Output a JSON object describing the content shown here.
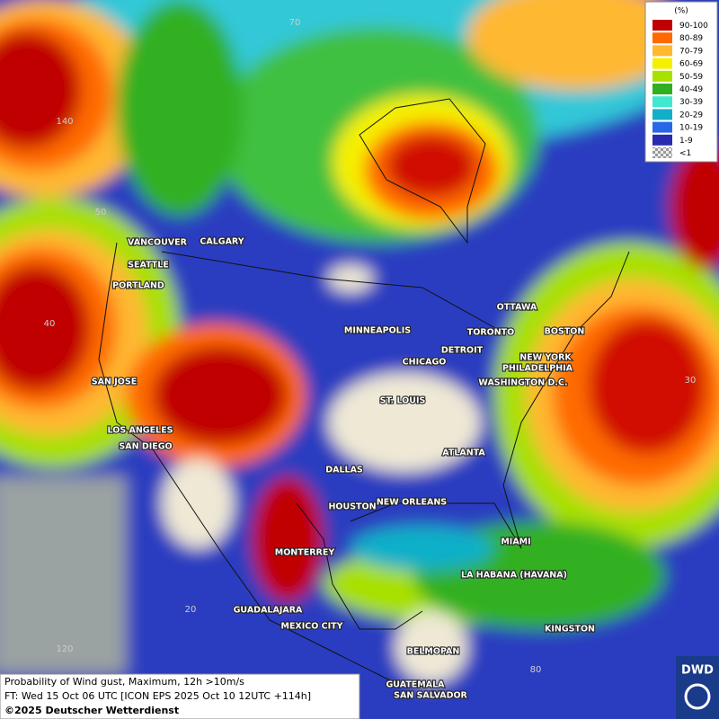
{
  "legend": {
    "title": "(%)",
    "items": [
      {
        "label": "90-100",
        "color": "#c00000"
      },
      {
        "label": "80-89",
        "color": "#ff6a00"
      },
      {
        "label": "70-79",
        "color": "#ffb830"
      },
      {
        "label": "60-69",
        "color": "#f5f000"
      },
      {
        "label": "50-59",
        "color": "#a8e000"
      },
      {
        "label": "40-49",
        "color": "#30b020"
      },
      {
        "label": "30-39",
        "color": "#40e8d0"
      },
      {
        "label": "20-29",
        "color": "#10b0c8"
      },
      {
        "label": "10-19",
        "color": "#2868e8"
      },
      {
        "label": "1-9",
        "color": "#2a2ab0"
      },
      {
        "label": "<1",
        "color": "#c8c8c8"
      }
    ]
  },
  "grid_labels": [
    "70",
    "140",
    "50",
    "40",
    "30",
    "20",
    "120",
    "80"
  ],
  "cities": [
    "VANCOUVER",
    "CALGARY",
    "SEATTLE",
    "PORTLAND",
    "SAN JOSE",
    "LOS ANGELES",
    "SAN DIEGO",
    "MINNEAPOLIS",
    "CHICAGO",
    "DETROIT",
    "TORONTO",
    "OTTAWA",
    "BOSTON",
    "NEW YORK",
    "PHILADELPHIA",
    "WASHINGTON D.C.",
    "ST. LOUIS",
    "DALLAS",
    "ATLANTA",
    "HOUSTON",
    "NEW ORLEANS",
    "MIAMI",
    "MONTERREY",
    "LA HABANA (HAVANA)",
    "GUADALAJARA",
    "MEXICO CITY",
    "KINGSTON",
    "BELMOPAN",
    "GUATEMALA",
    "SAN SALVADOR"
  ],
  "caption": {
    "line1": "Probability of Wind gust, Maximum, 12h >10m/s",
    "line2": "FT: Wed 15 Oct 06 UTC [ICON EPS 2025 Oct 10 12UTC +114h]",
    "line3": "©2025 Deutscher Wetterdienst"
  },
  "logo": "DWD"
}
